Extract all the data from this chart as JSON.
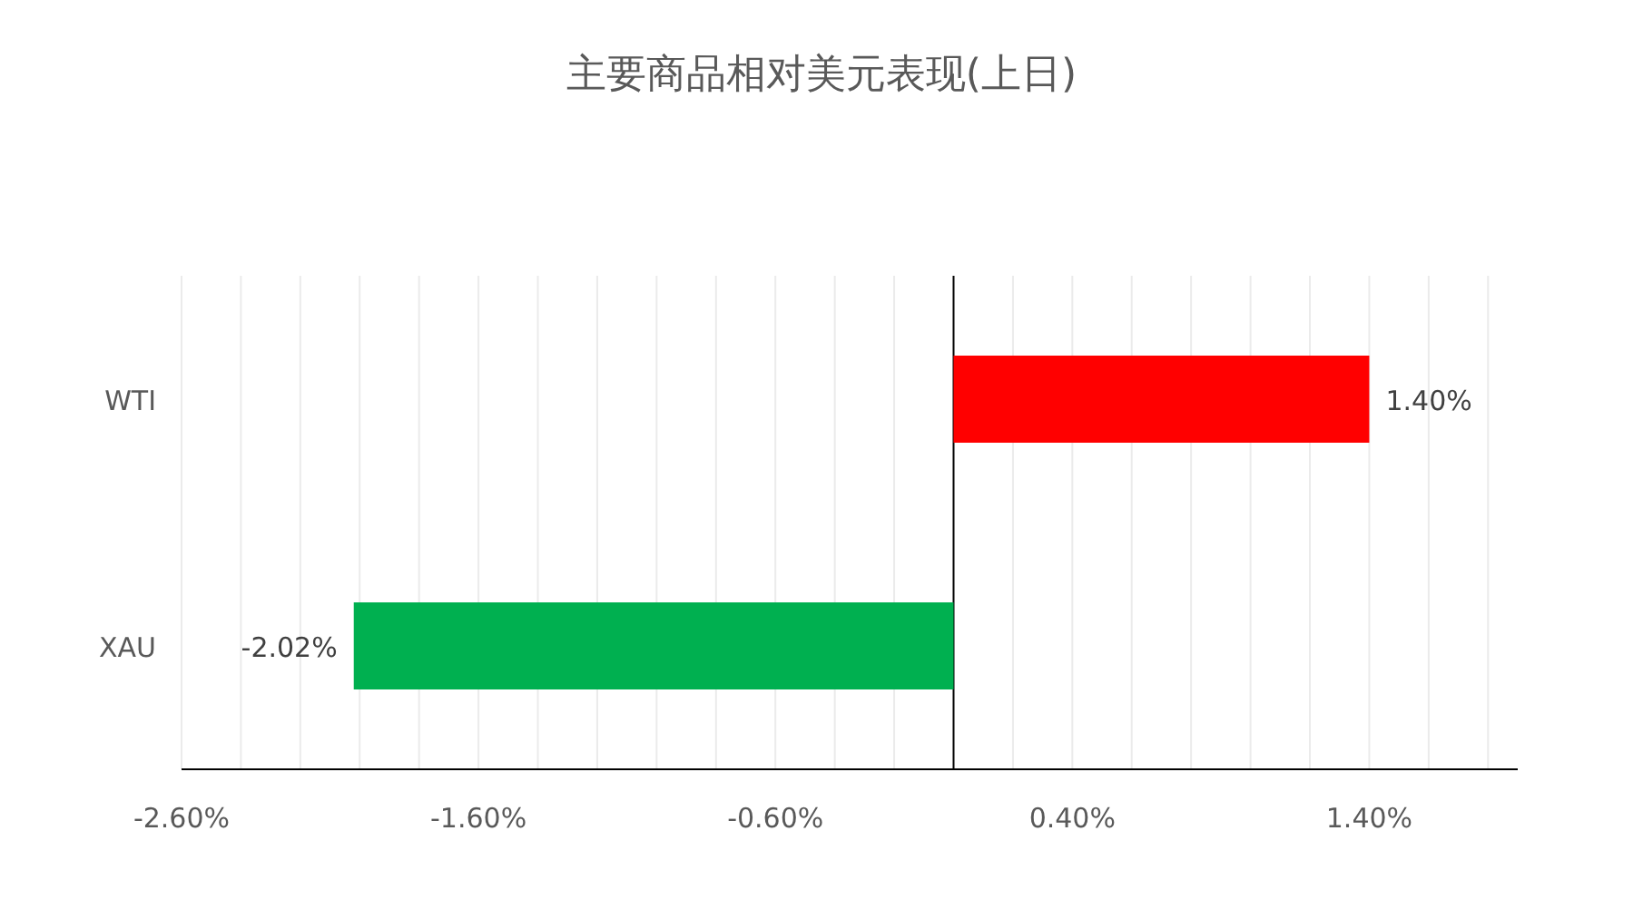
{
  "chart_data": {
    "type": "bar",
    "orientation": "horizontal",
    "title": "主要商品相对美元表现(上日)",
    "categories": [
      "WTI",
      "XAU"
    ],
    "series": [
      {
        "colors": [
          "#ff0000",
          "#00b050"
        ],
        "values": [
          1.4,
          -2.02
        ],
        "value_labels": [
          "1.40%",
          "-2.02%"
        ]
      }
    ],
    "xlim": [
      -2.6,
      1.9
    ],
    "xticks": [
      {
        "value": -2.6,
        "label": "-2.60%"
      },
      {
        "value": -2.4,
        "label": null
      },
      {
        "value": -2.2,
        "label": null
      },
      {
        "value": -2.0,
        "label": null
      },
      {
        "value": -1.8,
        "label": null
      },
      {
        "value": -1.6,
        "label": "-1.60%"
      },
      {
        "value": -1.4,
        "label": null
      },
      {
        "value": -1.2,
        "label": null
      },
      {
        "value": -1.0,
        "label": null
      },
      {
        "value": -0.8,
        "label": null
      },
      {
        "value": -0.6,
        "label": "-0.60%"
      },
      {
        "value": -0.4,
        "label": null
      },
      {
        "value": -0.2,
        "label": null
      },
      {
        "value": 0.2,
        "label": null
      },
      {
        "value": 0.4,
        "label": "0.40%"
      },
      {
        "value": 0.6,
        "label": null
      },
      {
        "value": 0.8,
        "label": null
      },
      {
        "value": 1.0,
        "label": null
      },
      {
        "value": 1.2,
        "label": null
      },
      {
        "value": 1.4,
        "label": "1.40%"
      },
      {
        "value": 1.6,
        "label": null
      },
      {
        "value": 1.8,
        "label": null
      }
    ],
    "grid": "x"
  }
}
